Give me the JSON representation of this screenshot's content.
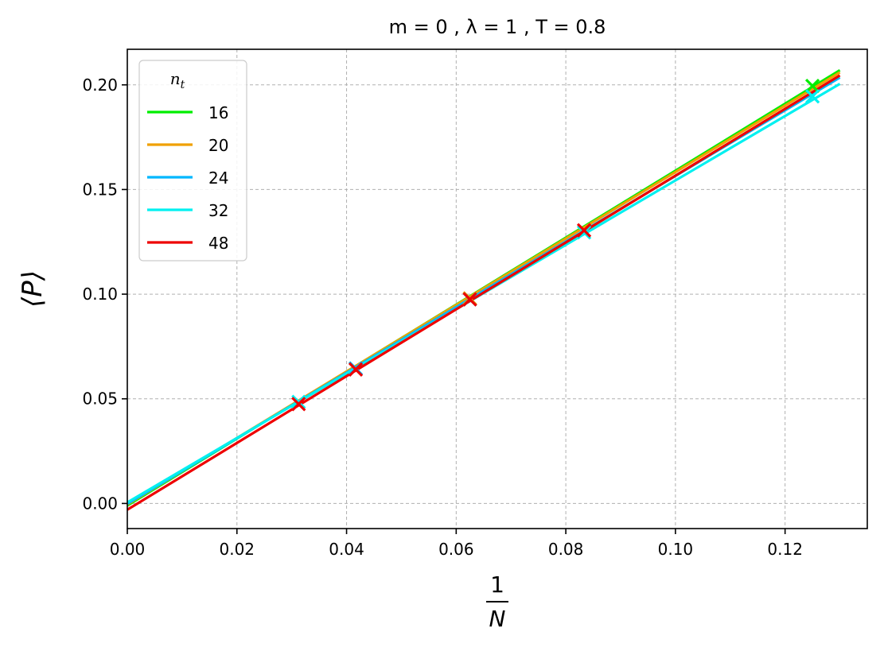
{
  "chart_data": {
    "type": "line",
    "title": "m = 0 , λ = 1 , T = 0.8",
    "xlabel": {
      "numerator": "1",
      "denominator": "N"
    },
    "ylabel": "⟨P⟩",
    "xlim": [
      0.0,
      0.135
    ],
    "ylim": [
      -0.012,
      0.217
    ],
    "xticks": [
      0.0,
      0.02,
      0.04,
      0.06,
      0.08,
      0.1,
      0.12
    ],
    "xtick_labels": [
      "0.00",
      "0.02",
      "0.04",
      "0.06",
      "0.08",
      "0.10",
      "0.12"
    ],
    "yticks": [
      0.0,
      0.05,
      0.1,
      0.15,
      0.2
    ],
    "ytick_labels": [
      "0.00",
      "0.05",
      "0.10",
      "0.15",
      "0.20"
    ],
    "grid": true,
    "legend": {
      "title": "n_t",
      "position": "top-left"
    },
    "series": [
      {
        "name": "16",
        "color": "#00ee00",
        "line": {
          "x": [
            0.0,
            0.13
          ],
          "y": [
            -0.001,
            0.207
          ]
        },
        "points": {
          "x": [
            0.125
          ],
          "y": [
            0.1995
          ]
        }
      },
      {
        "name": "20",
        "color": "#f0a000",
        "line": {
          "x": [
            0.0,
            0.13
          ],
          "y": [
            -0.0005,
            0.206
          ]
        },
        "points": {
          "x": [
            0.0625
          ],
          "y": [
            0.098
          ]
        }
      },
      {
        "name": "24",
        "color": "#00b7ff",
        "line": {
          "x": [
            0.0,
            0.13
          ],
          "y": [
            -0.0002,
            0.2035
          ]
        },
        "points": {
          "x": [
            0.04167
          ],
          "y": [
            0.0645
          ]
        }
      },
      {
        "name": "32",
        "color": "#00f0f0",
        "line": {
          "x": [
            0.0,
            0.13
          ],
          "y": [
            0.0005,
            0.2005
          ]
        },
        "points": {
          "x": [
            0.03125,
            0.0625,
            0.08333,
            0.125
          ],
          "y": [
            0.0485,
            0.0975,
            0.1295,
            0.1945
          ]
        }
      },
      {
        "name": "48",
        "color": "#ee0000",
        "line": {
          "x": [
            0.0,
            0.13
          ],
          "y": [
            -0.003,
            0.2045
          ]
        },
        "points": {
          "x": [
            0.03125,
            0.04167,
            0.0625,
            0.08333
          ],
          "y": [
            0.0475,
            0.064,
            0.0975,
            0.1305
          ]
        }
      }
    ]
  }
}
